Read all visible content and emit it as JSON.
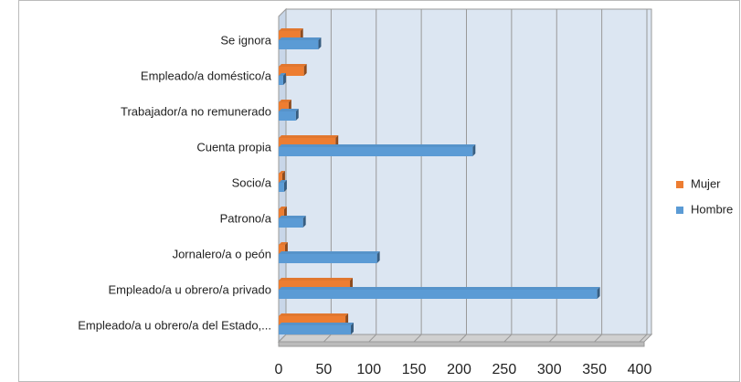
{
  "chart_data": {
    "type": "bar",
    "orientation": "horizontal",
    "categories": [
      "Se ignora",
      "Empleado/a doméstico/a",
      "Trabajador/a no remunerado",
      "Cuenta propia",
      "Socio/a",
      "Patrono/a",
      "Jornalero/a o peón",
      "Empleado/a u obrero/a privado",
      "Empleado/a u obrero/a del Estado,..."
    ],
    "series": [
      {
        "name": "Mujer",
        "color": "#ed7d31",
        "values": [
          24,
          28,
          11,
          63,
          4,
          6,
          7,
          79,
          74
        ]
      },
      {
        "name": "Hombre",
        "color": "#5b9bd5",
        "values": [
          44,
          5,
          19,
          215,
          6,
          27,
          109,
          353,
          80
        ]
      }
    ],
    "xlim": [
      0,
      400
    ],
    "xticks": [
      0,
      50,
      100,
      150,
      200,
      250,
      300,
      350,
      400
    ],
    "grid": true,
    "legend": "right"
  }
}
